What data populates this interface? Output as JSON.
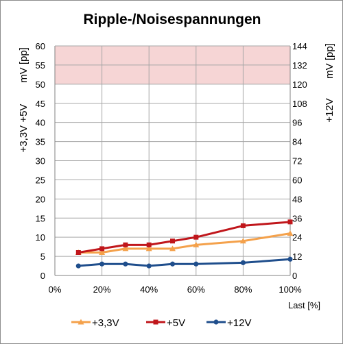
{
  "chart_data": {
    "type": "line",
    "title": "Ripple-/Noisespannungen",
    "xlabel": "Last [%]",
    "ylabel_left_line1": "+3,3V +5V",
    "ylabel_left_line2": "mV [pp]",
    "ylabel_right_line1": "+12V",
    "ylabel_right_line2": "mV [pp]",
    "x_ticks": [
      "0%",
      "20%",
      "40%",
      "60%",
      "80%",
      "100%"
    ],
    "xlim": [
      0,
      100
    ],
    "ylim_left": [
      0,
      60
    ],
    "ylim_right": [
      0,
      144
    ],
    "y_ticks_left": [
      "0",
      "5",
      "10",
      "15",
      "20",
      "25",
      "30",
      "35",
      "40",
      "45",
      "50",
      "55",
      "60"
    ],
    "y_ticks_right": [
      "0",
      "12",
      "24",
      "36",
      "48",
      "60",
      "72",
      "84",
      "96",
      "108",
      "120",
      "132",
      "144"
    ],
    "limit_band_left": [
      50,
      60
    ],
    "grid": true,
    "legend_position": "bottom",
    "series": [
      {
        "name": "+3,3V",
        "axis": "left",
        "color": "#f4a14b",
        "marker": "triangle",
        "x": [
          10,
          20,
          30,
          40,
          50,
          60,
          80,
          100
        ],
        "y": [
          6,
          6,
          7,
          7,
          7,
          8,
          9,
          11
        ]
      },
      {
        "name": "+5V",
        "axis": "left",
        "color": "#c0161b",
        "marker": "square",
        "x": [
          10,
          20,
          30,
          40,
          50,
          60,
          80,
          100
        ],
        "y": [
          6,
          7,
          8,
          8,
          9,
          10,
          13,
          14
        ]
      },
      {
        "name": "+12V",
        "axis": "right",
        "color": "#1f4e8c",
        "marker": "circle",
        "x": [
          10,
          20,
          30,
          40,
          50,
          60,
          80,
          100
        ],
        "y": [
          6,
          7.2,
          7.2,
          6,
          7.2,
          7.2,
          8,
          10.2
        ]
      }
    ]
  },
  "colors": {
    "limit_band": "#f6d5d5",
    "grid": "#a6a6a6"
  }
}
